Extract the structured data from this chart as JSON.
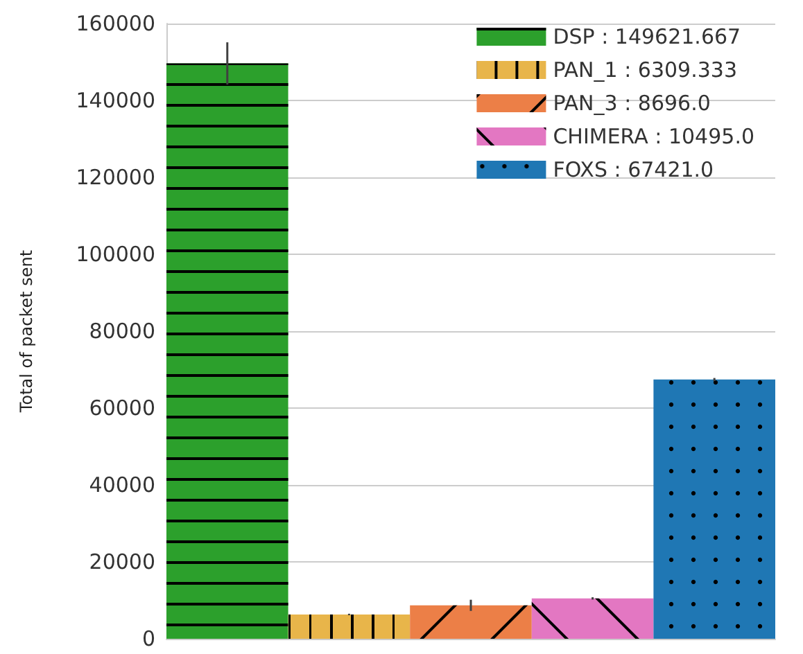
{
  "chart_data": {
    "type": "bar",
    "ylabel": "Total of packet sent",
    "categories": [
      null,
      null,
      null,
      null,
      null
    ],
    "series": [
      {
        "name": "DSP : 149621.667",
        "color": "#2ca02c",
        "values": [
          149621.667,
          null,
          null,
          null,
          null
        ],
        "errors": [
          5500,
          null,
          null,
          null,
          null
        ]
      },
      {
        "name": "PAN_1 : 6309.333",
        "color": "#e8b54a",
        "values": [
          null,
          6309.333,
          null,
          null,
          null
        ],
        "errors": [
          null,
          200,
          null,
          null,
          null
        ]
      },
      {
        "name": "PAN_3 : 8696.0",
        "color": "#ec7f47",
        "values": [
          null,
          null,
          8696.0,
          null,
          null
        ],
        "errors": [
          null,
          null,
          1450,
          null,
          null
        ]
      },
      {
        "name": "CHIMERA : 10495.0",
        "color": "#e377c2",
        "values": [
          null,
          null,
          null,
          10495.0,
          null
        ],
        "errors": [
          null,
          null,
          null,
          300,
          null
        ]
      },
      {
        "name": "FOXS : 67421.0",
        "color": "#1f77b4",
        "values": [
          null,
          null,
          null,
          null,
          67421.0
        ],
        "errors": [
          null,
          null,
          null,
          null,
          400
        ]
      }
    ],
    "ylim": [
      0,
      160000
    ],
    "yticks": [
      0,
      20000,
      40000,
      60000,
      80000,
      100000,
      120000,
      140000,
      160000
    ],
    "grid": "y",
    "legend": "top right"
  }
}
